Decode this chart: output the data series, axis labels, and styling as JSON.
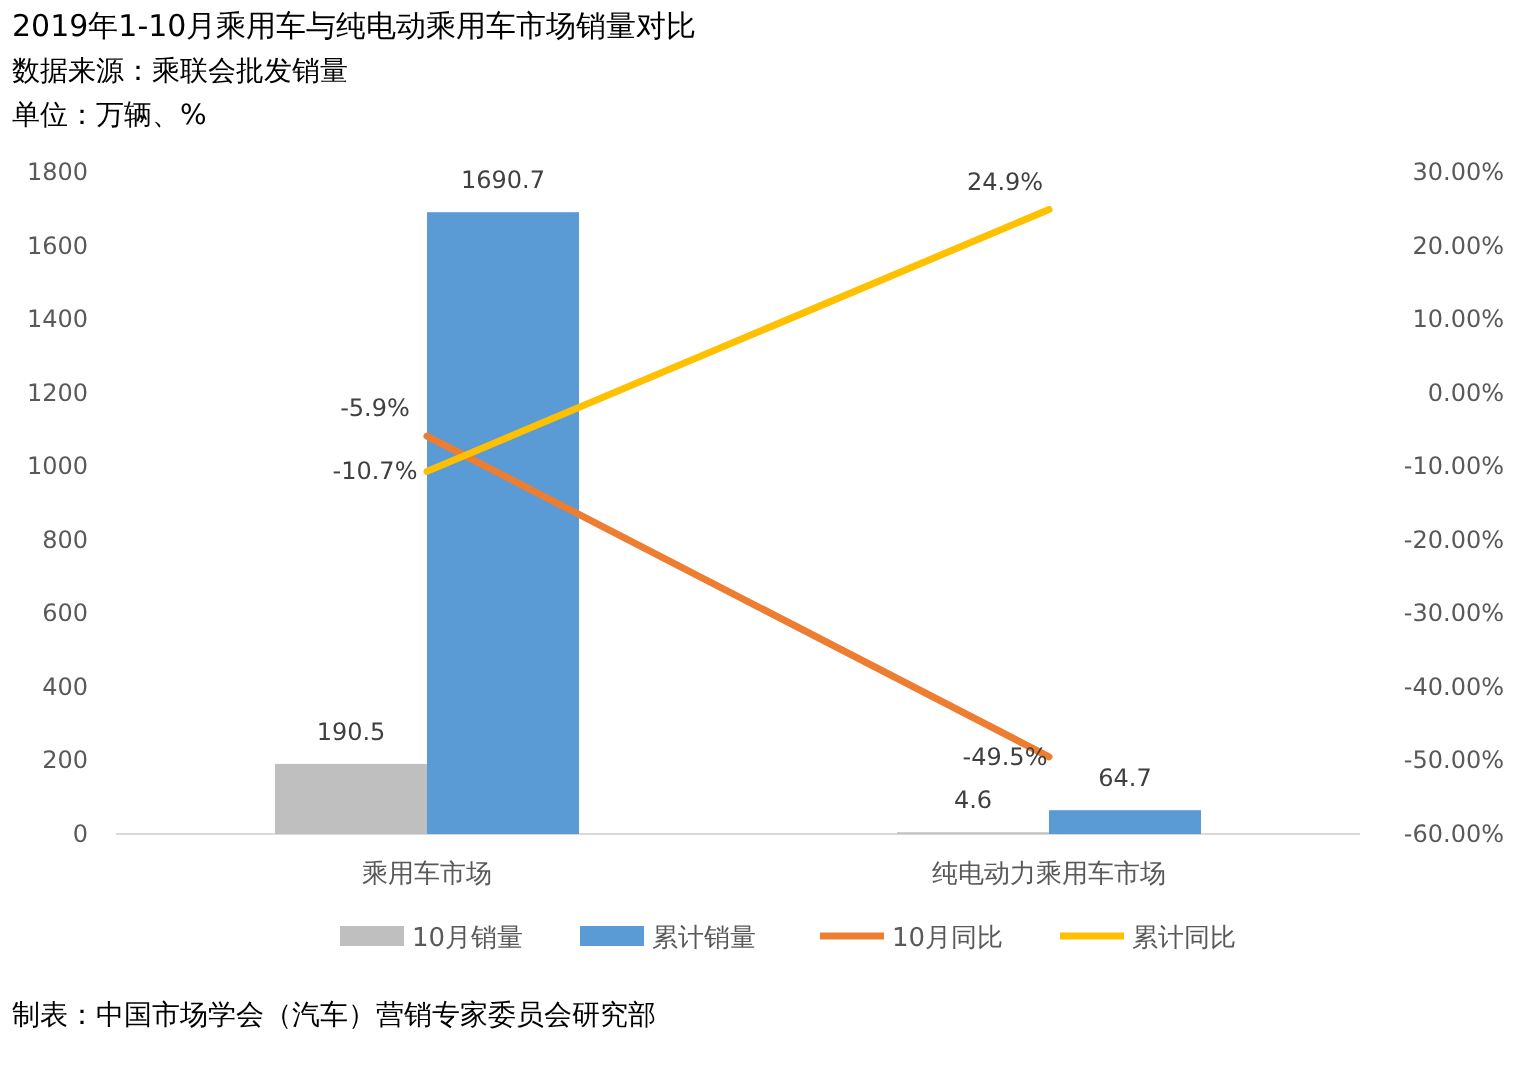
{
  "chart_data": {
    "type": "bar",
    "title": "2019年1-10月乘用车与纯电动乘用车市场销量对比",
    "subtitle": "数据来源：乘联会批发销量",
    "annotations": [
      "单位：万辆、%",
      "制表：中国市场学会（汽车）营销专家委员会研究部"
    ],
    "categories": [
      "乘用车市场",
      "纯电动力乘用车市场"
    ],
    "series": [
      {
        "name": "10月销量",
        "color": "#bfbfbf",
        "values": [
          190.5,
          4.6
        ],
        "value_labels": [
          "190.5",
          "4.6"
        ]
      },
      {
        "name": "累计销量",
        "color": "#5b9bd5",
        "values": [
          1690.7,
          64.7
        ],
        "value_labels": [
          "1690.7",
          "64.7"
        ]
      },
      {
        "name": "10月同比",
        "type": "line",
        "axis": "y2",
        "color": "#ed7d31",
        "values": [
          -5.9,
          -49.5
        ],
        "value_labels": [
          "-5.9%",
          "-49.5%"
        ]
      },
      {
        "name": "累计同比",
        "type": "line",
        "axis": "y2",
        "color": "#ffc000",
        "values": [
          -10.7,
          24.9
        ],
        "value_labels": [
          "-10.7%",
          "24.9%"
        ]
      }
    ],
    "ylim": [
      0,
      1800
    ],
    "yticks": [
      0,
      200,
      400,
      600,
      800,
      1000,
      1200,
      1400,
      1600,
      1800
    ],
    "y2lim": [
      -60,
      30
    ],
    "y2ticks": [
      {
        "value": 30,
        "label": "30.00%"
      },
      {
        "value": 20,
        "label": "20.00%"
      },
      {
        "value": 10,
        "label": "10.00%"
      },
      {
        "value": 0,
        "label": "0.00%"
      },
      {
        "value": -10,
        "label": "-10.00%"
      },
      {
        "value": -20,
        "label": "-20.00%"
      },
      {
        "value": -30,
        "label": "-30.00%"
      },
      {
        "value": -40,
        "label": "-40.00%"
      },
      {
        "value": -50,
        "label": "-50.00%"
      },
      {
        "value": -60,
        "label": "-60.00%"
      }
    ],
    "legend": "bottom"
  }
}
